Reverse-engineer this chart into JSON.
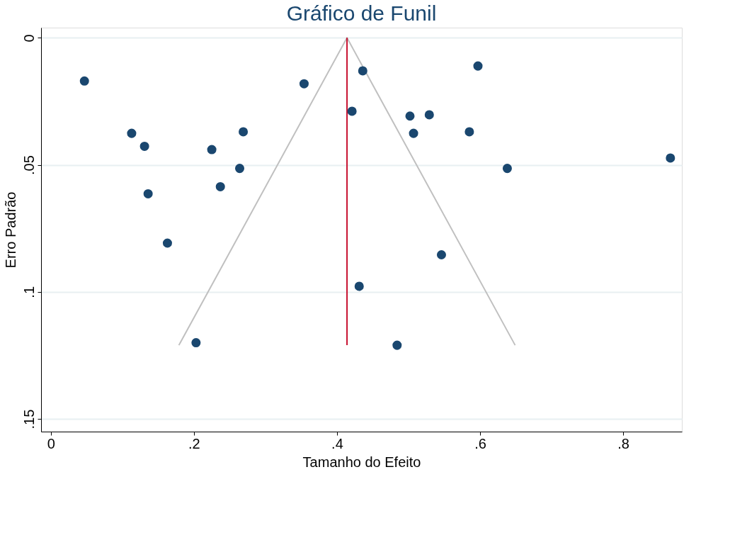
{
  "chart_data": {
    "type": "scatter",
    "title": "Gráfico de Funil",
    "xlabel": "Tamanho do Efeito",
    "ylabel": "Erro Padrão",
    "xlim": [
      -0.0136,
      0.882
    ],
    "ylim": [
      0.155,
      -0.004
    ],
    "xticks": [
      0,
      {
        "value": 0.2,
        "label": ".2"
      },
      {
        "value": 0.4,
        "label": ".4"
      },
      {
        "value": 0.6,
        "label": ".6"
      },
      {
        "value": 0.8,
        "label": ".8"
      }
    ],
    "yticks": [
      0,
      {
        "value": 0.05,
        "label": ".05"
      },
      {
        "value": 0.1,
        "label": ".1"
      },
      {
        "value": 0.15,
        "label": ".15"
      }
    ],
    "grid": "y",
    "marker": "circle",
    "series": [
      {
        "type": "line",
        "marker": "none",
        "color": "#c0c0c0",
        "x": [
          0.179,
          0.414,
          0.649
        ],
        "values": [
          0.121,
          0,
          0.121
        ]
      },
      {
        "type": "line",
        "marker": "none",
        "color": "#c8102e",
        "x": [
          0.414,
          0.414
        ],
        "values": [
          0,
          0.121
        ]
      },
      {
        "color": "#1a476f",
        "x": [
          0.047,
          0.113,
          0.131,
          0.136,
          0.163,
          0.203,
          0.225,
          0.237,
          0.264,
          0.269,
          0.354,
          0.421,
          0.436,
          0.431,
          0.484,
          0.502,
          0.507,
          0.529,
          0.546,
          0.585,
          0.597,
          0.638,
          0.866
        ],
        "values": [
          0.017,
          0.0376,
          0.0427,
          0.0614,
          0.0808,
          0.12,
          0.044,
          0.0586,
          0.0514,
          0.037,
          0.0181,
          0.0289,
          0.013,
          0.0978,
          0.121,
          0.0308,
          0.0376,
          0.0303,
          0.0854,
          0.037,
          0.0111,
          0.0514,
          0.0473
        ]
      }
    ]
  }
}
